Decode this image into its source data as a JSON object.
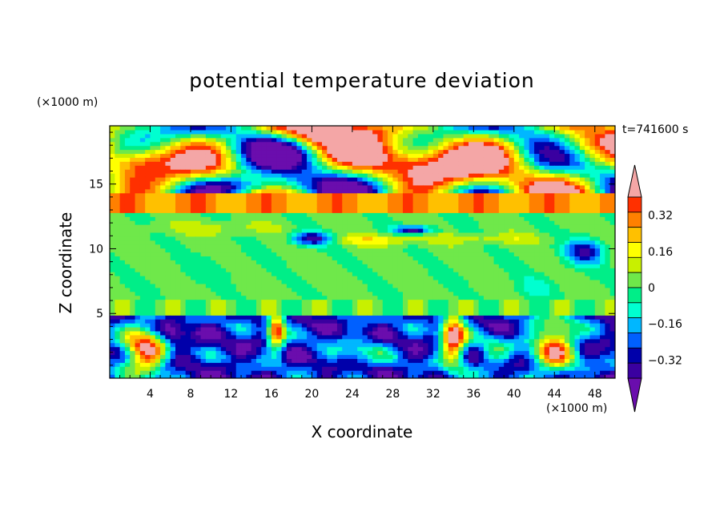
{
  "colors": {
    "palette": [
      "#6a0dad",
      "#3a00a0",
      "#0000aa",
      "#0060ff",
      "#00b7ff",
      "#00ffd0",
      "#00ee88",
      "#6fe84a",
      "#c8f000",
      "#ffff00",
      "#ffc000",
      "#ff8000",
      "#ff3000",
      "#f4a6a6"
    ],
    "frame": "#000000"
  },
  "chart_data": {
    "type": "heatmap",
    "title": "potential temperature deviation",
    "xlabel": "X coordinate",
    "ylabel": "Z coordinate",
    "x_unit": "(×1000 m)",
    "z_unit": "(×1000 m)",
    "time_label": "t=741600 s",
    "xlim": [
      0,
      50
    ],
    "ylim": [
      0,
      19.5
    ],
    "x_ticks": [
      4,
      8,
      12,
      16,
      20,
      24,
      28,
      32,
      36,
      40,
      44,
      48
    ],
    "y_ticks": [
      5,
      10,
      15
    ],
    "x_tick_labels": [
      "4",
      "8",
      "12",
      "16",
      "20",
      "24",
      "28",
      "32",
      "36",
      "40",
      "44",
      "48"
    ],
    "y_tick_labels": [
      "5",
      "10",
      "15"
    ],
    "colorbar": {
      "labels": [
        "0.32",
        "0.16",
        "0",
        "−0.16",
        "−0.32"
      ],
      "label_values": [
        0.32,
        0.16,
        0,
        -0.16,
        -0.32
      ],
      "levels": [
        -0.4,
        -0.36,
        -0.32,
        -0.28,
        -0.24,
        -0.2,
        -0.16,
        -0.12,
        -0.08,
        -0.04,
        0,
        0.04,
        0.08,
        0.12,
        0.16,
        0.2,
        0.24,
        0.28,
        0.32,
        0.36,
        0.4
      ],
      "extend": "both"
    },
    "layers_approx": [
      {
        "z_range": [
          0,
          5
        ],
        "description": "mixed, strong negative (purple/blue) with positive plumes near x=2-6, 16-17, 33-34, 42-46"
      },
      {
        "z_range": [
          5,
          13
        ],
        "value": 0.02
      },
      {
        "z_range": [
          13,
          14.5
        ],
        "value": 0.3
      },
      {
        "z_range": [
          14.5,
          19.5
        ],
        "description": "alternating strong positive (pink) and strong negative (purple) blobs"
      }
    ]
  }
}
